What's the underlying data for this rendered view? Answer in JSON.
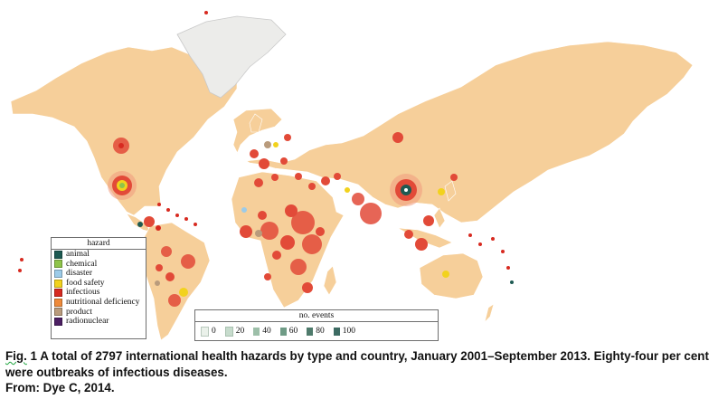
{
  "figure": {
    "label": "Fig.",
    "number": "1",
    "caption": "A total of 2797 international health hazards by type and country, January 2001–September 2013. Eighty-four per cent were outbreaks of infectious diseases.",
    "source": "From: Dye C, 2014."
  },
  "hazard_legend": {
    "title": "hazard",
    "items": [
      {
        "label": "animal",
        "color": "#1d5a52"
      },
      {
        "label": "chemical",
        "color": "#8fc44a"
      },
      {
        "label": "disaster",
        "color": "#9ccbe8"
      },
      {
        "label": "food safety",
        "color": "#f2d21d"
      },
      {
        "label": "infectious",
        "color": "#d72a20"
      },
      {
        "label": "nutritional deficiency",
        "color": "#ee8a3a"
      },
      {
        "label": "product",
        "color": "#b99b7c"
      },
      {
        "label": "radionuclear",
        "color": "#4c1f63"
      }
    ]
  },
  "events_legend": {
    "title": "no. events",
    "items": [
      {
        "label": "0",
        "color": "#eaf1ea"
      },
      {
        "label": "20",
        "color": "#c7dccd"
      },
      {
        "label": "40",
        "color": "#9dbfa9"
      },
      {
        "label": "60",
        "color": "#6f9b86"
      },
      {
        "label": "80",
        "color": "#4f7b6c"
      },
      {
        "label": "100",
        "color": "#3d6b63"
      }
    ]
  }
}
